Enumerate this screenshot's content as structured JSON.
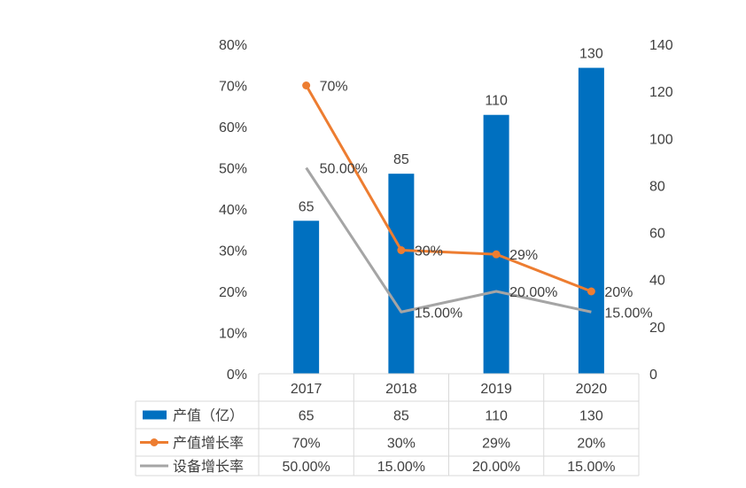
{
  "chart_data": {
    "type": "bar",
    "categories": [
      "2017",
      "2018",
      "2019",
      "2020"
    ],
    "y_left": {
      "ticks": [
        "0%",
        "10%",
        "20%",
        "30%",
        "40%",
        "50%",
        "60%",
        "70%",
        "80%"
      ],
      "lim": [
        0,
        80
      ]
    },
    "y_right": {
      "ticks": [
        "0",
        "20",
        "40",
        "60",
        "80",
        "100",
        "120",
        "140"
      ],
      "lim": [
        0,
        140
      ]
    },
    "grid": false,
    "legend": "data-table",
    "series": [
      {
        "name": "产值（亿）",
        "type": "bar",
        "axis": "right",
        "color": "#0070C0",
        "values": [
          65,
          85,
          110,
          130
        ],
        "labels": [
          "65",
          "85",
          "110",
          "130"
        ]
      },
      {
        "name": "产值增长率",
        "type": "line",
        "axis": "left",
        "color": "#ED7D31",
        "marker": "circle",
        "values": [
          70,
          30,
          29,
          20
        ],
        "labels": [
          "70%",
          "30%",
          "29%",
          "20%"
        ]
      },
      {
        "name": "设备增长率",
        "type": "line",
        "axis": "left",
        "color": "#A5A5A5",
        "marker": "none",
        "values": [
          50,
          15,
          20,
          15
        ],
        "labels": [
          "50.00%",
          "15.00%",
          "20.00%",
          "15.00%"
        ]
      }
    ]
  }
}
